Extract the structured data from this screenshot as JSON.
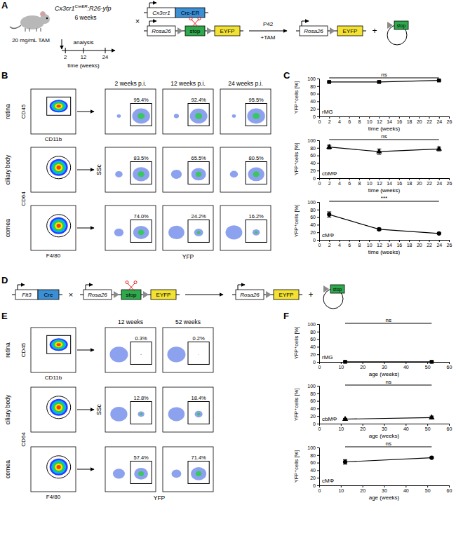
{
  "figure": {
    "panel_labels": [
      "A",
      "B",
      "C",
      "D",
      "E",
      "F"
    ],
    "A": {
      "mouse_label": {
        "base": "Cx3cr1",
        "sup": "CreER",
        "rest": ":R26-yfp"
      },
      "age": "6 weeks",
      "injection": "20 mg/mL TAM",
      "analysis": "analysis",
      "timeline": {
        "xlim": [
          0,
          24
        ],
        "xticks": [
          2,
          12,
          24
        ],
        "xlabel": "time (weeks)"
      },
      "driver": "Cx3cr1",
      "recombinase": "Cre-ER",
      "cross": "×",
      "reporter_locus": "Rosa26",
      "stop": "stop",
      "reporter": "EYFP",
      "condition": "P42",
      "treatment": "+TAM",
      "plus": "+"
    },
    "B": {
      "columns": [
        "2 weeks p.i.",
        "12 weeks p.i.",
        "24 weeks p.i."
      ],
      "tissues": [
        "retina",
        "ciliary body",
        "cornea"
      ],
      "gating_labels": [
        {
          "y": "CD45",
          "x": "CD11b"
        },
        {
          "y": "CD64",
          "x": "F4/80"
        }
      ],
      "x_label": "YFP",
      "y_label": "SSc",
      "gates": [
        [
          {
            "value": 95.4,
            "label": "95.4%"
          },
          {
            "value": 92.4,
            "label": "92.4%"
          },
          {
            "value": 95.5,
            "label": "95.5%"
          }
        ],
        [
          {
            "value": 83.5,
            "label": "83.5%"
          },
          {
            "value": 65.5,
            "label": "65.5%"
          },
          {
            "value": 80.5,
            "label": "80.5%"
          }
        ],
        [
          {
            "value": 74,
            "label": "74.0%"
          },
          {
            "value": 24.2,
            "label": "24.2%"
          },
          {
            "value": 16.2,
            "label": "16.2%"
          }
        ]
      ]
    },
    "D": {
      "driver": "Flt3",
      "recombinase": "Cre",
      "cross": "×",
      "reporter_locus": "Rosa26",
      "stop": "stop",
      "reporter": "EYFP",
      "plus": "+"
    },
    "E": {
      "columns": [
        "12 weeks",
        "52 weeks"
      ],
      "tissues": [
        "retina",
        "ciliary body",
        "cornea"
      ],
      "gating_labels": [
        {
          "y": "CD45",
          "x": "CD11b"
        },
        {
          "y": "CD64",
          "x": "F4/80"
        }
      ],
      "x_label": "YFP",
      "y_label": "SSc",
      "gates": [
        [
          {
            "value": 0.3,
            "label": "0.3%"
          },
          {
            "value": 0.2,
            "label": "0.2%"
          }
        ],
        [
          {
            "value": 12.8,
            "label": "12.8%"
          },
          {
            "value": 18.4,
            "label": "18.4%"
          }
        ],
        [
          {
            "value": 57.4,
            "label": "57.4%"
          },
          {
            "value": 71.4,
            "label": "71.4%"
          }
        ]
      ]
    }
  },
  "chart_data": [
    {
      "type": "line",
      "title": "rMG",
      "xlabel": "time (weeks)",
      "ylabel": "YFP⁺cells [%]",
      "x": [
        2,
        12,
        24
      ],
      "xlim": [
        0,
        26
      ],
      "xticks": [
        0,
        2,
        4,
        6,
        8,
        10,
        12,
        14,
        16,
        18,
        20,
        22,
        24,
        26
      ],
      "ylim": [
        0,
        100
      ],
      "yticks": [
        0,
        20,
        40,
        60,
        80,
        100
      ],
      "annotations": [
        "ns"
      ],
      "series": [
        {
          "values": [
            91,
            91,
            95
          ],
          "error": [
            1,
            1.5,
            1
          ],
          "marker": "square",
          "color": "#000000"
        }
      ]
    },
    {
      "type": "line",
      "title": "cbMΦ",
      "xlabel": "time (weeks)",
      "ylabel": "YFP⁺cells [%]",
      "x": [
        2,
        12,
        24
      ],
      "xlim": [
        0,
        26
      ],
      "xticks": [
        0,
        2,
        4,
        6,
        8,
        10,
        12,
        14,
        16,
        18,
        20,
        22,
        24,
        26
      ],
      "ylim": [
        0,
        100
      ],
      "yticks": [
        0,
        20,
        40,
        60,
        80,
        100
      ],
      "annotations": [
        "ns"
      ],
      "series": [
        {
          "values": [
            82,
            70,
            77
          ],
          "error": [
            5,
            7,
            5
          ],
          "marker": "triangle",
          "color": "#000000"
        }
      ]
    },
    {
      "type": "line",
      "title": "cMΦ",
      "xlabel": "time (weeks)",
      "ylabel": "YFP⁺cells [%]",
      "x": [
        2,
        12,
        24
      ],
      "xlim": [
        0,
        26
      ],
      "xticks": [
        0,
        2,
        4,
        6,
        8,
        10,
        12,
        14,
        16,
        18,
        20,
        22,
        24,
        26
      ],
      "ylim": [
        0,
        100
      ],
      "yticks": [
        0,
        20,
        40,
        60,
        80,
        100
      ],
      "annotations": [
        "***"
      ],
      "series": [
        {
          "values": [
            67,
            28,
            17
          ],
          "error": [
            7,
            3,
            1.5
          ],
          "marker": "circle",
          "color": "#000000"
        }
      ]
    },
    {
      "type": "line",
      "title": "rMG",
      "xlabel": "age (weeks)",
      "ylabel": "YFP⁺cells [%]",
      "x": [
        12,
        52
      ],
      "xlim": [
        0,
        60
      ],
      "xticks": [
        0,
        10,
        20,
        30,
        40,
        50,
        60
      ],
      "ylim": [
        0,
        100
      ],
      "yticks": [
        0,
        20,
        40,
        60,
        80,
        100
      ],
      "annotations": [
        "ns"
      ],
      "series": [
        {
          "values": [
            0.3,
            0.2
          ],
          "error": [
            0.1,
            0.1
          ],
          "marker": "square",
          "color": "#000000"
        }
      ]
    },
    {
      "type": "line",
      "title": "cbMΦ",
      "xlabel": "age (weeks)",
      "ylabel": "YFP⁺cells [%]",
      "x": [
        12,
        52
      ],
      "xlim": [
        0,
        60
      ],
      "xticks": [
        0,
        10,
        20,
        30,
        40,
        50,
        60
      ],
      "ylim": [
        0,
        100
      ],
      "yticks": [
        0,
        20,
        40,
        60,
        80,
        100
      ],
      "annotations": [
        "ns"
      ],
      "series": [
        {
          "values": [
            12,
            16
          ],
          "error": [
            2,
            4
          ],
          "marker": "triangle",
          "color": "#000000"
        }
      ]
    },
    {
      "type": "line",
      "title": "cMΦ",
      "xlabel": "age (weeks)",
      "ylabel": "YFP⁺cells [%]",
      "x": [
        12,
        52
      ],
      "xlim": [
        0,
        60
      ],
      "xticks": [
        0,
        10,
        20,
        30,
        40,
        50,
        60
      ],
      "ylim": [
        0,
        100
      ],
      "yticks": [
        0,
        20,
        40,
        60,
        80,
        100
      ],
      "annotations": [
        "ns"
      ],
      "series": [
        {
          "values": [
            62,
            73
          ],
          "error": [
            6,
            2
          ],
          "marker": "circle",
          "color": "#000000"
        }
      ]
    }
  ]
}
